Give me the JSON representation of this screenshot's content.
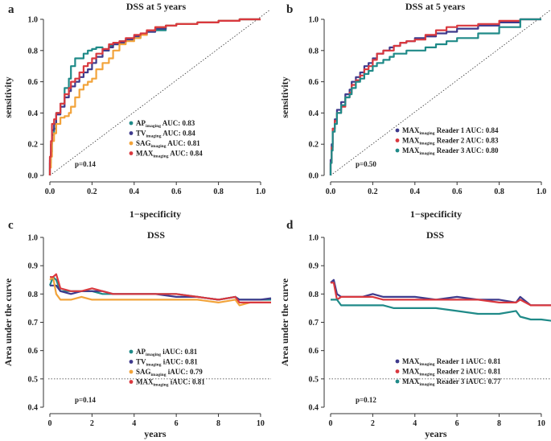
{
  "chart_data": [
    {
      "panel": "a",
      "type": "line",
      "title": "DSS at 5 years",
      "xlabel": "1−specificity",
      "ylabel": "sensitivity",
      "xlim": [
        0,
        1
      ],
      "ylim": [
        0,
        1
      ],
      "xticks": [
        0.0,
        0.2,
        0.4,
        0.6,
        0.8,
        1.0
      ],
      "yticks": [
        0.0,
        0.2,
        0.4,
        0.6,
        0.8,
        1.0
      ],
      "tick_labels_x": [
        "0.0",
        "0.2",
        "0.4",
        "0.6",
        "0.8",
        "1.0"
      ],
      "tick_labels_y": [
        "0.0",
        "0.2",
        "0.4",
        "0.6",
        "0.8",
        "1.0"
      ],
      "reference_line": "diagonal",
      "annotation": "p=0.14",
      "series": [
        {
          "name": "AP",
          "sub": "imaging",
          "suffix": " AUC: 0.83",
          "color": "#1f8a88",
          "x": [
            0,
            0.005,
            0.01,
            0.02,
            0.03,
            0.05,
            0.07,
            0.09,
            0.1,
            0.12,
            0.14,
            0.16,
            0.18,
            0.2,
            0.22,
            0.25,
            0.28,
            0.3,
            0.33,
            0.36,
            0.4,
            0.43,
            0.46,
            0.5,
            0.55,
            0.6,
            0.7,
            0.8,
            0.9,
            1.0
          ],
          "y": [
            0,
            0.08,
            0.15,
            0.26,
            0.3,
            0.4,
            0.46,
            0.56,
            0.62,
            0.7,
            0.75,
            0.75,
            0.78,
            0.8,
            0.81,
            0.82,
            0.8,
            0.83,
            0.84,
            0.86,
            0.87,
            0.88,
            0.9,
            0.92,
            0.93,
            0.96,
            0.97,
            0.98,
            0.99,
            1.0
          ]
        },
        {
          "name": "TV",
          "sub": "imaging",
          "suffix": " AUC: 0.84",
          "color": "#3e3a8c",
          "x": [
            0,
            0.005,
            0.01,
            0.02,
            0.03,
            0.05,
            0.07,
            0.09,
            0.1,
            0.12,
            0.14,
            0.16,
            0.18,
            0.2,
            0.22,
            0.25,
            0.28,
            0.3,
            0.33,
            0.36,
            0.4,
            0.43,
            0.46,
            0.5,
            0.55,
            0.6,
            0.7,
            0.8,
            0.9,
            1.0
          ],
          "y": [
            0,
            0.1,
            0.2,
            0.29,
            0.33,
            0.39,
            0.44,
            0.5,
            0.54,
            0.57,
            0.6,
            0.63,
            0.66,
            0.68,
            0.72,
            0.76,
            0.8,
            0.82,
            0.84,
            0.85,
            0.87,
            0.89,
            0.9,
            0.92,
            0.94,
            0.96,
            0.97,
            0.98,
            0.99,
            1.0
          ]
        },
        {
          "name": "SAG",
          "sub": "imaging",
          "suffix": " AUC: 0.81",
          "color": "#f2a33a",
          "x": [
            0,
            0.005,
            0.01,
            0.02,
            0.03,
            0.05,
            0.07,
            0.09,
            0.1,
            0.12,
            0.14,
            0.16,
            0.18,
            0.2,
            0.22,
            0.25,
            0.28,
            0.3,
            0.33,
            0.36,
            0.4,
            0.43,
            0.46,
            0.5,
            0.55,
            0.6,
            0.7,
            0.8,
            0.9,
            1.0
          ],
          "y": [
            0,
            0.05,
            0.12,
            0.22,
            0.27,
            0.33,
            0.37,
            0.38,
            0.4,
            0.44,
            0.5,
            0.55,
            0.58,
            0.6,
            0.62,
            0.68,
            0.72,
            0.75,
            0.8,
            0.84,
            0.86,
            0.88,
            0.9,
            0.93,
            0.95,
            0.96,
            0.97,
            0.98,
            0.99,
            1.0
          ]
        },
        {
          "name": "MAX",
          "sub": "imaging",
          "suffix": " AUC: 0.84",
          "color": "#d9383e",
          "x": [
            0,
            0.005,
            0.01,
            0.02,
            0.03,
            0.05,
            0.07,
            0.09,
            0.1,
            0.12,
            0.14,
            0.16,
            0.18,
            0.2,
            0.22,
            0.25,
            0.28,
            0.3,
            0.33,
            0.36,
            0.4,
            0.43,
            0.46,
            0.5,
            0.55,
            0.6,
            0.7,
            0.8,
            0.9,
            1.0
          ],
          "y": [
            0,
            0.12,
            0.22,
            0.33,
            0.36,
            0.4,
            0.46,
            0.52,
            0.56,
            0.6,
            0.62,
            0.66,
            0.7,
            0.72,
            0.75,
            0.78,
            0.81,
            0.84,
            0.85,
            0.86,
            0.88,
            0.9,
            0.91,
            0.93,
            0.95,
            0.96,
            0.97,
            0.98,
            0.99,
            1.0
          ]
        }
      ]
    },
    {
      "panel": "b",
      "type": "line",
      "title": "DSS at 5 years",
      "xlabel": "1−specificity",
      "ylabel": "sensitivity",
      "xlim": [
        0,
        1
      ],
      "ylim": [
        0,
        1
      ],
      "xticks": [
        0.0,
        0.2,
        0.4,
        0.6,
        0.8,
        1.0
      ],
      "yticks": [
        0.0,
        0.2,
        0.4,
        0.6,
        0.8,
        1.0
      ],
      "tick_labels_x": [
        "0.0",
        "0.2",
        "0.4",
        "0.6",
        "0.8",
        "1.0"
      ],
      "tick_labels_y": [
        "0.0",
        "0.2",
        "0.4",
        "0.6",
        "0.8",
        "1.0"
      ],
      "reference_line": "diagonal",
      "annotation": "p=0.50",
      "series": [
        {
          "name": "MAX",
          "sub": "imaging",
          "suffix": " Reader 1 AUC: 0.84",
          "color": "#3e3a8c",
          "x": [
            0,
            0.005,
            0.01,
            0.02,
            0.03,
            0.05,
            0.07,
            0.09,
            0.1,
            0.12,
            0.14,
            0.16,
            0.18,
            0.2,
            0.22,
            0.25,
            0.28,
            0.3,
            0.33,
            0.36,
            0.4,
            0.45,
            0.5,
            0.55,
            0.6,
            0.7,
            0.8,
            0.9,
            1.0
          ],
          "y": [
            0,
            0.1,
            0.2,
            0.3,
            0.36,
            0.42,
            0.47,
            0.52,
            0.55,
            0.6,
            0.63,
            0.66,
            0.7,
            0.72,
            0.75,
            0.78,
            0.8,
            0.82,
            0.83,
            0.85,
            0.86,
            0.88,
            0.89,
            0.91,
            0.92,
            0.94,
            0.96,
            0.98,
            1.0
          ]
        },
        {
          "name": "MAX",
          "sub": "imaging",
          "suffix": " Reader 2 AUC: 0.83",
          "color": "#d9383e",
          "x": [
            0,
            0.005,
            0.01,
            0.02,
            0.03,
            0.05,
            0.07,
            0.09,
            0.1,
            0.12,
            0.14,
            0.16,
            0.18,
            0.2,
            0.22,
            0.25,
            0.28,
            0.3,
            0.33,
            0.36,
            0.4,
            0.45,
            0.5,
            0.55,
            0.6,
            0.7,
            0.8,
            0.9,
            1.0
          ],
          "y": [
            0,
            0.08,
            0.18,
            0.3,
            0.35,
            0.4,
            0.44,
            0.5,
            0.53,
            0.58,
            0.61,
            0.64,
            0.68,
            0.7,
            0.74,
            0.78,
            0.8,
            0.8,
            0.83,
            0.85,
            0.86,
            0.87,
            0.9,
            0.93,
            0.95,
            0.96,
            0.97,
            0.99,
            1.0
          ]
        },
        {
          "name": "MAX",
          "sub": "imaging",
          "suffix": " Reader 3 AUC: 0.80",
          "color": "#1f8a88",
          "x": [
            0,
            0.005,
            0.01,
            0.02,
            0.03,
            0.05,
            0.07,
            0.09,
            0.1,
            0.12,
            0.14,
            0.16,
            0.18,
            0.2,
            0.22,
            0.25,
            0.28,
            0.3,
            0.33,
            0.36,
            0.4,
            0.45,
            0.5,
            0.55,
            0.6,
            0.7,
            0.8,
            0.9,
            1.0
          ],
          "y": [
            0,
            0.08,
            0.16,
            0.28,
            0.33,
            0.4,
            0.45,
            0.5,
            0.52,
            0.56,
            0.6,
            0.62,
            0.65,
            0.67,
            0.7,
            0.72,
            0.74,
            0.76,
            0.78,
            0.78,
            0.8,
            0.8,
            0.82,
            0.84,
            0.86,
            0.88,
            0.91,
            0.95,
            1.0
          ]
        }
      ]
    },
    {
      "panel": "c",
      "type": "line",
      "title": "DSS",
      "xlabel": "years",
      "ylabel": "Area under the curve",
      "xlim": [
        0,
        10.5
      ],
      "ylim": [
        0.4,
        1.0
      ],
      "xticks": [
        0,
        2,
        4,
        6,
        8,
        10
      ],
      "yticks": [
        0.4,
        0.5,
        0.6,
        0.7,
        0.8,
        0.9,
        1.0
      ],
      "tick_labels_x": [
        "0",
        "2",
        "4",
        "6",
        "8",
        "10"
      ],
      "tick_labels_y": [
        "0.4",
        "0.5",
        "0.6",
        "0.7",
        "0.8",
        "0.9",
        "1.0"
      ],
      "reference_line": "horizontal_0.5",
      "annotation": "p=0.14",
      "series": [
        {
          "name": "AP",
          "sub": "imaging",
          "suffix": " iAUC: 0.81",
          "color": "#1f8a88",
          "x": [
            0,
            0.15,
            0.3,
            0.5,
            1,
            1.5,
            2,
            2.5,
            3,
            4,
            5,
            6,
            7,
            8,
            8.8,
            9,
            9.5,
            10,
            10.5
          ],
          "y": [
            0.83,
            0.86,
            0.85,
            0.81,
            0.81,
            0.81,
            0.81,
            0.8,
            0.8,
            0.8,
            0.8,
            0.8,
            0.79,
            0.78,
            0.79,
            0.78,
            0.78,
            0.78,
            0.78
          ]
        },
        {
          "name": "TV",
          "sub": "imaging",
          "suffix": " iAUC: 0.81",
          "color": "#3e3a8c",
          "x": [
            0,
            0.15,
            0.3,
            0.5,
            1,
            1.5,
            2,
            2.5,
            3,
            4,
            5,
            6,
            7,
            8,
            8.8,
            9,
            9.5,
            10,
            10.5
          ],
          "y": [
            0.83,
            0.83,
            0.83,
            0.81,
            0.8,
            0.81,
            0.81,
            0.81,
            0.8,
            0.8,
            0.8,
            0.79,
            0.79,
            0.78,
            0.79,
            0.78,
            0.78,
            0.78,
            0.785
          ]
        },
        {
          "name": "SAG",
          "sub": "imaging",
          "suffix": " iAUC: 0.79",
          "color": "#f2a33a",
          "x": [
            0,
            0.15,
            0.3,
            0.5,
            1,
            1.5,
            2,
            2.5,
            3,
            4,
            5,
            6,
            7,
            8,
            8.8,
            9,
            9.5,
            10,
            10.5
          ],
          "y": [
            0.85,
            0.86,
            0.8,
            0.78,
            0.78,
            0.79,
            0.78,
            0.78,
            0.78,
            0.78,
            0.78,
            0.78,
            0.78,
            0.77,
            0.78,
            0.76,
            0.77,
            0.77,
            0.77
          ]
        },
        {
          "name": "MAX",
          "sub": "imaging",
          "suffix": " iAUC: 0.81",
          "color": "#d9383e",
          "x": [
            0,
            0.15,
            0.3,
            0.5,
            1,
            1.5,
            2,
            2.5,
            3,
            4,
            5,
            6,
            7,
            8,
            8.8,
            9,
            9.5,
            10,
            10.5
          ],
          "y": [
            0.86,
            0.86,
            0.87,
            0.82,
            0.81,
            0.81,
            0.82,
            0.81,
            0.8,
            0.8,
            0.8,
            0.8,
            0.79,
            0.78,
            0.79,
            0.77,
            0.77,
            0.77,
            0.77
          ]
        }
      ]
    },
    {
      "panel": "d",
      "type": "line",
      "title": "DSS",
      "xlabel": "years",
      "ylabel": "Area under the curve",
      "xlim": [
        0,
        10.5
      ],
      "ylim": [
        0.4,
        1.0
      ],
      "xticks": [
        0,
        2,
        4,
        6,
        8,
        10
      ],
      "yticks": [
        0.4,
        0.5,
        0.6,
        0.7,
        0.8,
        0.9,
        1.0
      ],
      "tick_labels_x": [
        "0",
        "2",
        "4",
        "6",
        "8",
        "10"
      ],
      "tick_labels_y": [
        "0.4",
        "0.5",
        "0.6",
        "0.7",
        "0.8",
        "0.9",
        "1.0"
      ],
      "reference_line": "horizontal_0.5",
      "annotation": "p=0.12",
      "series": [
        {
          "name": "MAX",
          "sub": "imaging",
          "suffix": " Reader 1 iAUC: 0.81",
          "color": "#3e3a8c",
          "x": [
            0,
            0.15,
            0.3,
            0.5,
            1,
            1.5,
            2,
            2.5,
            3,
            4,
            5,
            6,
            7,
            8,
            8.8,
            9,
            9.5,
            10,
            10.5
          ],
          "y": [
            0.84,
            0.85,
            0.8,
            0.79,
            0.79,
            0.79,
            0.8,
            0.79,
            0.79,
            0.79,
            0.78,
            0.79,
            0.78,
            0.78,
            0.77,
            0.79,
            0.76,
            0.76,
            0.76
          ]
        },
        {
          "name": "MAX",
          "sub": "imaging",
          "suffix": " Reader 2 iAUC: 0.81",
          "color": "#d9383e",
          "x": [
            0,
            0.15,
            0.3,
            0.5,
            1,
            1.5,
            2,
            2.5,
            3,
            4,
            5,
            6,
            7,
            8,
            8.8,
            9,
            9.5,
            10,
            10.5
          ],
          "y": [
            0.84,
            0.84,
            0.78,
            0.79,
            0.79,
            0.79,
            0.79,
            0.78,
            0.78,
            0.78,
            0.78,
            0.78,
            0.78,
            0.77,
            0.77,
            0.78,
            0.76,
            0.76,
            0.76
          ]
        },
        {
          "name": "MAX",
          "sub": "imaging",
          "suffix": " Reader 3 iAUC: 0.77",
          "color": "#1f8a88",
          "x": [
            0,
            0.15,
            0.3,
            0.5,
            1,
            1.5,
            2,
            2.5,
            3,
            4,
            5,
            6,
            7,
            8,
            8.8,
            9,
            9.5,
            10,
            10.5
          ],
          "y": [
            0.78,
            0.78,
            0.78,
            0.76,
            0.76,
            0.76,
            0.76,
            0.76,
            0.75,
            0.75,
            0.75,
            0.74,
            0.73,
            0.73,
            0.74,
            0.72,
            0.71,
            0.71,
            0.705
          ]
        }
      ]
    }
  ]
}
